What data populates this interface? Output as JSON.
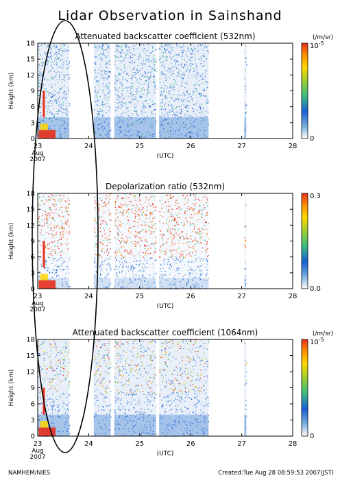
{
  "title": "Lidar Observation in Sainshand",
  "footer": {
    "left": "NAMHEM/NIES",
    "right": "Created:Tue Aug 28 08:59:53 2007(JST)"
  },
  "chart_data": [
    {
      "type": "heatmap",
      "title": "Attenuated backscatter coefficient (532nm)",
      "xlabel": "(UTC)",
      "ylabel": "Height (km)",
      "x_ticks": [
        "23",
        "24",
        "25",
        "26",
        "27",
        "28"
      ],
      "x_values": [
        23,
        24,
        25,
        26,
        27,
        28
      ],
      "x_sublabels": [
        "Aug",
        "2007"
      ],
      "xlim": [
        23,
        28
      ],
      "y_ticks": [
        "0",
        "3",
        "6",
        "9",
        "12",
        "15",
        "18"
      ],
      "ylim": [
        0,
        18
      ],
      "colorbar": {
        "unit": "(/m/sr)",
        "max_base": "10",
        "max_exp": "-5",
        "min": "0"
      },
      "data_segments_utc_day": [
        [
          23.0,
          23.62
        ],
        [
          24.1,
          24.43
        ],
        [
          24.5,
          25.32
        ],
        [
          25.38,
          26.35
        ],
        [
          27.05,
          27.09
        ]
      ]
    },
    {
      "type": "heatmap",
      "title": "Depolarization ratio (532nm)",
      "xlabel": "(UTC)",
      "ylabel": "Height (km)",
      "x_ticks": [
        "23",
        "24",
        "25",
        "26",
        "27",
        "28"
      ],
      "x_values": [
        23,
        24,
        25,
        26,
        27,
        28
      ],
      "x_sublabels": [
        "Aug",
        "2007"
      ],
      "xlim": [
        23,
        28
      ],
      "y_ticks": [
        "0",
        "3",
        "6",
        "9",
        "12",
        "15",
        "18"
      ],
      "ylim": [
        0,
        18
      ],
      "colorbar": {
        "unit": "",
        "max": "0.3",
        "min": "0.0"
      },
      "data_segments_utc_day": [
        [
          23.0,
          23.62
        ],
        [
          24.1,
          24.43
        ],
        [
          24.5,
          25.32
        ],
        [
          25.38,
          26.35
        ],
        [
          27.05,
          27.09
        ]
      ]
    },
    {
      "type": "heatmap",
      "title": "Attenuated backscatter coefficient (1064nm)",
      "xlabel": "(UTC)",
      "ylabel": "Height (km)",
      "x_ticks": [
        "23",
        "24",
        "25",
        "26",
        "27",
        "28"
      ],
      "x_values": [
        23,
        24,
        25,
        26,
        27,
        28
      ],
      "x_sublabels": [
        "Aug",
        "2007"
      ],
      "xlim": [
        23,
        28
      ],
      "y_ticks": [
        "0",
        "3",
        "6",
        "9",
        "12",
        "15",
        "18"
      ],
      "ylim": [
        0,
        18
      ],
      "colorbar": {
        "unit": "(/m/sr)",
        "max_base": "10",
        "max_exp": "-5",
        "min": "0"
      },
      "data_segments_utc_day": [
        [
          23.0,
          23.62
        ],
        [
          24.1,
          24.43
        ],
        [
          24.5,
          25.32
        ],
        [
          25.38,
          26.35
        ],
        [
          27.05,
          27.09
        ]
      ]
    }
  ],
  "colors": {
    "background": "#ffffff",
    "axis": "#000000",
    "annotation_ellipse": "#000000",
    "colorbar_stops": [
      "#ffffff",
      "#6fa8dc",
      "#1a5fd6",
      "#3dbd7e",
      "#9acd32",
      "#ffd700",
      "#ff8c00",
      "#e8301c"
    ]
  }
}
